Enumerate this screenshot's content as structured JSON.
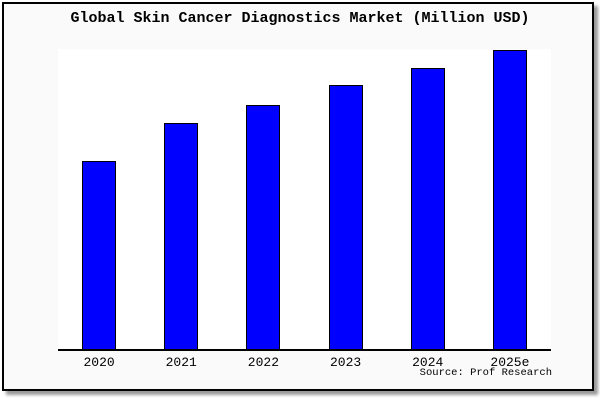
{
  "title": "Global Skin Cancer Diagnostics Market (Million USD)",
  "source": "Source: Prof Research",
  "colors": {
    "bar_fill": "#0000ff",
    "bar_border": "#000000",
    "frame_background": "#fafafa",
    "plot_background": "#ffffff",
    "frame_border": "#000000",
    "text": "#000000"
  },
  "chart_data": {
    "type": "bar",
    "title": "Global Skin Cancer Diagnostics Market (Million USD)",
    "categories": [
      "2020",
      "2021",
      "2022",
      "2023",
      "2024",
      "2025e"
    ],
    "values": [
      63,
      75.5,
      81.7,
      88.3,
      94,
      100
    ],
    "value_note": "No y-axis, gridlines or data labels are shown; values are relative bar heights with 2025e = 100",
    "xlabel": "",
    "ylabel": "",
    "grid": false,
    "legend": false,
    "source": "Source: Prof Research"
  }
}
